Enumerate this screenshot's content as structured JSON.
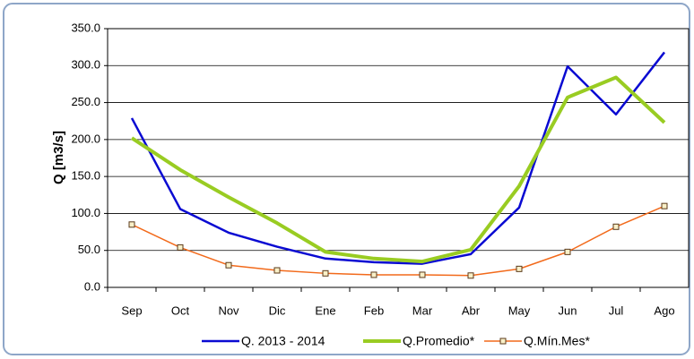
{
  "chart_data": {
    "type": "line",
    "y_label": "Q [m3/s]",
    "categories": [
      "Sep",
      "Oct",
      "Nov",
      "Dic",
      "Ene",
      "Feb",
      "Mar",
      "Abr",
      "May",
      "Jun",
      "Jul",
      "Ago"
    ],
    "series": [
      {
        "name": "Q. 2013 - 2014",
        "color": "#0a0ad2",
        "values": [
          229,
          106,
          74,
          55,
          39,
          34,
          32,
          45,
          108,
          299,
          234,
          318
        ]
      },
      {
        "name": "Q.Promedio*",
        "color": "#99cc22",
        "values": [
          202,
          159,
          122,
          87,
          48,
          39,
          35,
          51,
          137,
          257,
          284,
          223
        ]
      },
      {
        "name": "Q.Mín.Mes*",
        "color": "#f26a1b",
        "marker": "square",
        "values": [
          85,
          54,
          30,
          23,
          19,
          17,
          17,
          16,
          25,
          48,
          82,
          110
        ]
      }
    ],
    "ylim": [
      0,
      350
    ],
    "yticks": [
      {
        "value": 0,
        "label": "0.0"
      },
      {
        "value": 50,
        "label": "50.0"
      },
      {
        "value": 100,
        "label": "100.0"
      },
      {
        "value": 150,
        "label": "150.0"
      },
      {
        "value": 200,
        "label": "200.0"
      },
      {
        "value": 250,
        "label": "250.0"
      },
      {
        "value": 300,
        "label": "300.0"
      },
      {
        "value": 350,
        "label": "350.0"
      }
    ],
    "grid": true,
    "legend": "bottom"
  }
}
